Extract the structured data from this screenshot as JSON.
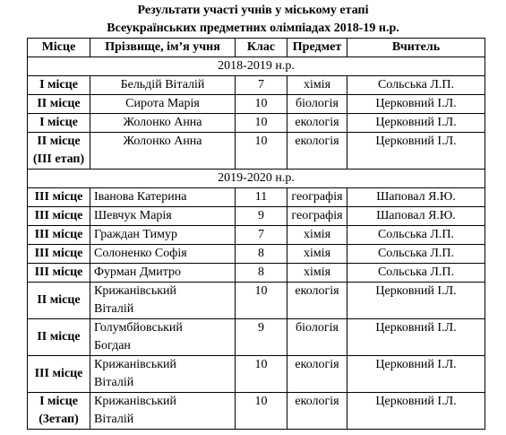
{
  "header": {
    "title_lines": [
      "Результати участі учнів у міському етапі",
      "Всеукраїнських предметних олімпіадах 2018-19 н.р."
    ]
  },
  "table": {
    "columns": [
      "Місце",
      "Прізвище, ім’я учня",
      "Клас",
      "Предмет",
      "Вчитель"
    ],
    "sections": [
      {
        "label": "2018-2019 н.р.",
        "rows": [
          [
            "I місце",
            "Бельдій Віталій",
            "7",
            "хімія",
            "Сольська Л.П."
          ],
          [
            "II місце",
            "Сирота Марія",
            "10",
            "біологія",
            "Церковний І.Л."
          ],
          [
            "I місце",
            "Жолонко Анна",
            "10",
            "екологія",
            "Церковний І.Л."
          ],
          [
            "II місце\n(III етап)",
            "Жолонко Анна",
            "10",
            "екологія",
            "Церковний І.Л."
          ]
        ]
      },
      {
        "label": "2019-2020 н.р.",
        "rows": [
          [
            "III місце",
            "Іванова Катерина",
            "11",
            "географія",
            "Шаповал Я.Ю."
          ],
          [
            "III місце",
            "Шевчук Марія",
            "9",
            "географія",
            "Шаповал Я.Ю."
          ],
          [
            "III місце",
            "Граждан Тимур",
            "7",
            "хімія",
            "Сольська Л.П."
          ],
          [
            "III місце",
            "Солоненко Софія",
            "8",
            "хімія",
            "Сольська Л.П."
          ],
          [
            "III місце",
            "Фурман Дмитро",
            "8",
            "хімія",
            "Сольська Л.П."
          ],
          [
            "II місце",
            "Крижанівський\nВіталій",
            "10",
            "екологія",
            "Церковний І.Л."
          ],
          [
            "II місце",
            "Голумбйовський\nБогдан",
            "9",
            "біологія",
            "Церковний І.Л."
          ],
          [
            "III місце",
            "Крижанівський\nВіталій",
            "10",
            "екологія",
            "Церковний І.Л."
          ],
          [
            "I місце\n(3етап)",
            "Крижанівський\nВіталій",
            "10",
            "екологія",
            "Церковний І.Л."
          ]
        ]
      }
    ]
  }
}
